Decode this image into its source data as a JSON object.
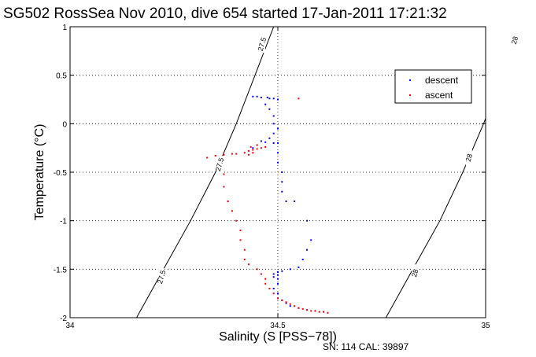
{
  "chart_data": {
    "type": "scatter",
    "title": "SG502 RossSea Nov 2010, dive 654 started 17-Jan-2011 17:21:32",
    "xlabel": "Salinity (S [PSS−78])",
    "ylabel": "Temperature (°C)",
    "xlim": [
      34,
      35
    ],
    "ylim": [
      -2,
      1
    ],
    "x_ticks": [
      "34",
      "34.5",
      "35"
    ],
    "y_ticks": [
      "-2",
      "-1.5",
      "-1",
      "-0.5",
      "0",
      "0.5",
      "1"
    ],
    "grid": "dotted",
    "legend_position": "top-right",
    "footer": "SN: 114  CAL: 39897",
    "contours": [
      {
        "label": "27.5",
        "points": [
          [
            34.16,
            -2.0
          ],
          [
            34.225,
            -1.5
          ],
          [
            34.29,
            -1.0
          ],
          [
            34.35,
            -0.5
          ],
          [
            34.4,
            0.0
          ],
          [
            34.445,
            0.5
          ],
          [
            34.49,
            1.0
          ]
        ]
      },
      {
        "label": "28",
        "points": [
          [
            34.76,
            -2.0
          ],
          [
            34.825,
            -1.5
          ],
          [
            34.89,
            -1.0
          ],
          [
            34.945,
            -0.5
          ],
          [
            34.995,
            0.0
          ],
          [
            35.04,
            0.5
          ],
          [
            35.08,
            1.0
          ]
        ]
      }
    ],
    "contour_labels": [
      {
        "text": "27.5",
        "x": 34.462,
        "y": 0.82
      },
      {
        "text": "27.5",
        "x": 34.36,
        "y": -0.42
      },
      {
        "text": "27.5",
        "x": 34.22,
        "y": -1.58
      },
      {
        "text": "28",
        "x": 35.07,
        "y": 0.86
      },
      {
        "text": "28",
        "x": 34.96,
        "y": -0.35
      },
      {
        "text": "28",
        "x": 34.83,
        "y": -1.54
      }
    ],
    "series": [
      {
        "name": "descent",
        "color": "#0000ff",
        "points": [
          [
            34.44,
            0.28
          ],
          [
            34.45,
            0.28
          ],
          [
            34.46,
            0.27
          ],
          [
            34.475,
            0.27
          ],
          [
            34.48,
            0.26
          ],
          [
            34.49,
            0.26
          ],
          [
            34.5,
            0.25
          ],
          [
            34.47,
            0.2
          ],
          [
            34.48,
            0.15
          ],
          [
            34.49,
            0.08
          ],
          [
            34.49,
            0.0
          ],
          [
            34.5,
            -0.05
          ],
          [
            34.49,
            -0.1
          ],
          [
            34.48,
            -0.15
          ],
          [
            34.46,
            -0.18
          ],
          [
            34.47,
            -0.19
          ],
          [
            34.49,
            -0.2
          ],
          [
            34.5,
            -0.2
          ],
          [
            34.45,
            -0.22
          ],
          [
            34.44,
            -0.25
          ],
          [
            34.5,
            -0.3
          ],
          [
            34.5,
            -0.4
          ],
          [
            34.51,
            -0.5
          ],
          [
            34.51,
            -0.6
          ],
          [
            34.51,
            -0.7
          ],
          [
            34.52,
            -0.8
          ],
          [
            34.54,
            -0.8
          ],
          [
            34.57,
            -1.0
          ],
          [
            34.58,
            -1.2
          ],
          [
            34.57,
            -1.3
          ],
          [
            34.56,
            -1.4
          ],
          [
            34.55,
            -1.48
          ],
          [
            34.53,
            -1.5
          ],
          [
            34.51,
            -1.52
          ],
          [
            34.5,
            -1.53
          ],
          [
            34.49,
            -1.55
          ],
          [
            34.5,
            -1.56
          ],
          [
            34.49,
            -1.58
          ],
          [
            34.5,
            -1.6
          ],
          [
            34.5,
            -1.65
          ],
          [
            34.49,
            -1.7
          ],
          [
            34.5,
            -1.75
          ],
          [
            34.5,
            -1.8
          ],
          [
            34.51,
            -1.82
          ],
          [
            34.52,
            -1.85
          ],
          [
            34.53,
            -1.88
          ],
          [
            34.55,
            -1.9
          ],
          [
            34.57,
            -1.92
          ],
          [
            34.59,
            -1.93
          ],
          [
            34.61,
            -1.94
          ]
        ]
      },
      {
        "name": "ascent",
        "color": "#ff0000",
        "points": [
          [
            34.55,
            0.26
          ],
          [
            34.33,
            -0.35
          ],
          [
            34.35,
            -0.33
          ],
          [
            34.37,
            -0.32
          ],
          [
            34.39,
            -0.31
          ],
          [
            34.4,
            -0.31
          ],
          [
            34.42,
            -0.3
          ],
          [
            34.43,
            -0.28
          ],
          [
            34.44,
            -0.27
          ],
          [
            34.45,
            -0.26
          ],
          [
            34.46,
            -0.25
          ],
          [
            34.47,
            -0.24
          ],
          [
            34.44,
            -0.3
          ],
          [
            34.43,
            -0.32
          ],
          [
            34.435,
            -0.24
          ],
          [
            34.45,
            -0.22
          ],
          [
            34.37,
            -0.52
          ],
          [
            34.37,
            -0.65
          ],
          [
            34.38,
            -0.8
          ],
          [
            34.39,
            -0.9
          ],
          [
            34.4,
            -1.0
          ],
          [
            34.41,
            -1.1
          ],
          [
            34.41,
            -1.2
          ],
          [
            34.42,
            -1.3
          ],
          [
            34.42,
            -1.4
          ],
          [
            34.43,
            -1.45
          ],
          [
            34.45,
            -1.5
          ],
          [
            34.46,
            -1.55
          ],
          [
            34.47,
            -1.6
          ],
          [
            34.47,
            -1.65
          ],
          [
            34.48,
            -1.7
          ],
          [
            34.49,
            -1.75
          ],
          [
            34.5,
            -1.8
          ],
          [
            34.51,
            -1.82
          ],
          [
            34.52,
            -1.84
          ],
          [
            34.53,
            -1.86
          ],
          [
            34.54,
            -1.88
          ],
          [
            34.55,
            -1.9
          ],
          [
            34.56,
            -1.91
          ],
          [
            34.57,
            -1.92
          ],
          [
            34.58,
            -1.93
          ],
          [
            34.59,
            -1.93
          ],
          [
            34.6,
            -1.94
          ],
          [
            34.61,
            -1.94
          ],
          [
            34.62,
            -1.95
          ]
        ]
      }
    ]
  }
}
